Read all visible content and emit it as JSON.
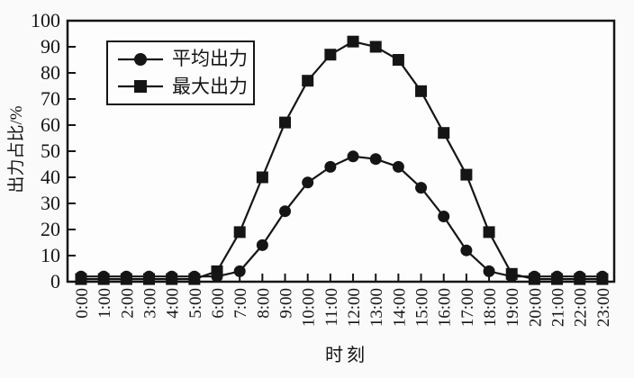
{
  "chart_data": {
    "type": "line",
    "title": "",
    "xlabel": "时刻",
    "ylabel": "出力占比/%",
    "ylim": [
      0,
      100
    ],
    "ytick_step": 10,
    "grid": false,
    "legend_position": "upper-left",
    "line_color": "#151515",
    "categories": [
      "0:00",
      "1:00",
      "2:00",
      "3:00",
      "4:00",
      "5:00",
      "6:00",
      "7:00",
      "8:00",
      "9:00",
      "10:00",
      "11:00",
      "12:00",
      "13:00",
      "14:00",
      "15:00",
      "16:00",
      "17:00",
      "18:00",
      "19:00",
      "20:00",
      "21:00",
      "22:00",
      "23:00"
    ],
    "series": [
      {
        "name": "平均出力",
        "marker": "circle",
        "color": "#151515",
        "values": [
          2,
          2,
          2,
          2,
          2,
          2,
          2,
          4,
          14,
          27,
          38,
          44,
          48,
          47,
          44,
          36,
          25,
          12,
          4,
          2,
          2,
          2,
          2,
          2
        ]
      },
      {
        "name": "最大出力",
        "marker": "square",
        "color": "#151515",
        "values": [
          1,
          1,
          1,
          1,
          1,
          1,
          4,
          19,
          40,
          61,
          77,
          87,
          92,
          90,
          85,
          73,
          57,
          41,
          19,
          3,
          1,
          1,
          1,
          1
        ]
      }
    ]
  }
}
